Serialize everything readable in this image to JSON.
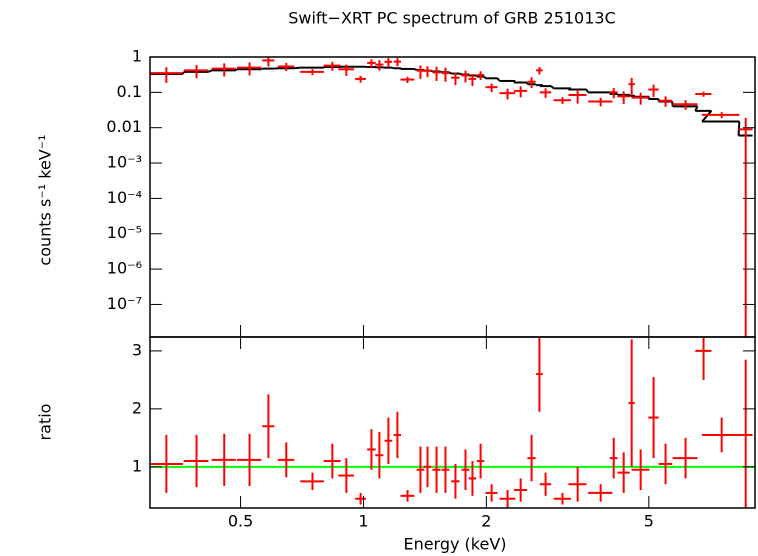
{
  "chart_data": [
    {
      "type": "errorbar",
      "title": "Swift−XRT PC spectrum of GRB 251013C",
      "ylabel": "counts s⁻¹ keV⁻¹",
      "xscale": "log",
      "yscale": "log",
      "xlim": [
        0.3,
        9.1
      ],
      "ylim": [
        1.2e-08,
        1
      ],
      "yticks": [
        1,
        0.1,
        0.01,
        {
          "value": 0.001,
          "label": "10⁻³"
        },
        {
          "value": 0.0001,
          "label": "10⁻⁴"
        },
        {
          "value": 1e-05,
          "label": "10⁻⁵"
        },
        {
          "value": 1e-06,
          "label": "10⁻⁶"
        },
        {
          "value": 1e-07,
          "label": "10⁻⁷"
        }
      ],
      "color": "#ff0000",
      "model_color": "#000000",
      "x": [
        0.329,
        0.39,
        0.456,
        0.526,
        0.585,
        0.647,
        0.75,
        0.839,
        0.908,
        0.984,
        1.046,
        1.094,
        1.151,
        1.211,
        1.282,
        1.379,
        1.435,
        1.51,
        1.588,
        1.68,
        1.778,
        1.849,
        1.936,
        2.06,
        2.254,
        2.427,
        2.581,
        2.698,
        2.793,
        3.073,
        3.347,
        3.811,
        4.102,
        4.339,
        4.539,
        4.775,
        5.136,
        5.495,
        6.151,
        6.808,
        7.541,
        8.635
      ],
      "xerr": [
        0.032,
        0.027,
        0.031,
        0.036,
        0.02,
        0.03,
        0.05,
        0.04,
        0.04,
        0.03,
        0.025,
        0.025,
        0.025,
        0.025,
        0.05,
        0.03,
        0.03,
        0.035,
        0.035,
        0.04,
        0.04,
        0.04,
        0.04,
        0.07,
        0.1,
        0.09,
        0.06,
        0.05,
        0.09,
        0.15,
        0.17,
        0.26,
        0.09,
        0.15,
        0.08,
        0.24,
        0.15,
        0.21,
        0.43,
        0.31,
        0.79,
        0.34
      ],
      "values": [
        0.35,
        0.42,
        0.47,
        0.5,
        0.8,
        0.54,
        0.38,
        0.57,
        0.45,
        0.24,
        0.68,
        0.61,
        0.73,
        0.74,
        0.23,
        0.41,
        0.41,
        0.37,
        0.35,
        0.26,
        0.3,
        0.24,
        0.31,
        0.14,
        0.095,
        0.11,
        0.2,
        0.42,
        0.1,
        0.06,
        0.084,
        0.055,
        0.1,
        0.077,
        0.17,
        0.071,
        0.12,
        0.058,
        0.046,
        0.09,
        0.023,
        0.009
      ],
      "yerr": [
        0.165,
        0.17,
        0.19,
        0.2,
        0.26,
        0.14,
        0.075,
        0.16,
        0.16,
        0.053,
        0.18,
        0.2,
        0.2,
        0.19,
        0.046,
        0.17,
        0.14,
        0.16,
        0.15,
        0.1,
        0.11,
        0.09,
        0.084,
        0.038,
        0.032,
        0.038,
        0.068,
        0.1,
        0.03,
        0.013,
        0.036,
        0.015,
        0.032,
        0.03,
        0.088,
        0.026,
        0.046,
        0.019,
        0.014,
        0.015,
        0.0045,
        0.01
      ],
      "model": [
        0.33,
        0.38,
        0.42,
        0.45,
        0.47,
        0.48,
        0.5,
        0.52,
        0.53,
        0.53,
        0.52,
        0.51,
        0.5,
        0.48,
        0.46,
        0.43,
        0.41,
        0.39,
        0.37,
        0.34,
        0.32,
        0.3,
        0.28,
        0.25,
        0.21,
        0.19,
        0.17,
        0.16,
        0.15,
        0.13,
        0.12,
        0.1,
        0.09,
        0.085,
        0.08,
        0.075,
        0.065,
        0.055,
        0.04,
        0.03,
        0.015,
        0.006
      ]
    },
    {
      "type": "errorbar",
      "ylabel": "ratio",
      "xlabel": "Energy (keV)",
      "xscale": "log",
      "xlim": [
        0.3,
        9.1
      ],
      "ylim": [
        0.29,
        3.24
      ],
      "xticks": [
        0.5,
        1,
        2,
        5
      ],
      "yticks": [
        1,
        2,
        3
      ],
      "color": "#ff0000",
      "reference": 1,
      "reference_color": "#00ff00",
      "x": [
        0.329,
        0.39,
        0.456,
        0.526,
        0.585,
        0.647,
        0.75,
        0.839,
        0.908,
        0.984,
        1.046,
        1.094,
        1.151,
        1.211,
        1.282,
        1.379,
        1.435,
        1.51,
        1.588,
        1.68,
        1.778,
        1.849,
        1.936,
        2.06,
        2.254,
        2.427,
        2.581,
        2.698,
        2.793,
        3.073,
        3.347,
        3.811,
        4.102,
        4.339,
        4.539,
        4.775,
        5.136,
        5.495,
        6.151,
        6.808,
        7.541,
        8.635
      ],
      "xerr": [
        0.032,
        0.027,
        0.031,
        0.036,
        0.02,
        0.03,
        0.05,
        0.04,
        0.04,
        0.03,
        0.025,
        0.025,
        0.025,
        0.025,
        0.05,
        0.03,
        0.03,
        0.035,
        0.035,
        0.04,
        0.04,
        0.04,
        0.04,
        0.07,
        0.1,
        0.09,
        0.06,
        0.05,
        0.09,
        0.15,
        0.17,
        0.26,
        0.09,
        0.15,
        0.08,
        0.24,
        0.15,
        0.21,
        0.43,
        0.31,
        0.79,
        0.34
      ],
      "values": [
        1.05,
        1.1,
        1.12,
        1.12,
        1.7,
        1.12,
        0.75,
        1.1,
        0.85,
        0.45,
        1.3,
        1.2,
        1.45,
        1.55,
        0.5,
        0.95,
        1.0,
        0.95,
        0.95,
        0.75,
        0.95,
        0.8,
        1.1,
        0.55,
        0.45,
        0.6,
        1.15,
        2.6,
        0.7,
        0.45,
        0.7,
        0.55,
        1.15,
        0.9,
        2.1,
        0.95,
        1.85,
        1.05,
        1.15,
        3.0,
        1.55,
        1.55
      ],
      "yerr": [
        0.5,
        0.45,
        0.45,
        0.45,
        0.55,
        0.3,
        0.15,
        0.3,
        0.3,
        0.1,
        0.35,
        0.4,
        0.4,
        0.4,
        0.1,
        0.4,
        0.35,
        0.4,
        0.4,
        0.3,
        0.35,
        0.3,
        0.3,
        0.15,
        0.15,
        0.2,
        0.4,
        0.65,
        0.2,
        0.1,
        0.3,
        0.15,
        0.35,
        0.35,
        1.1,
        0.35,
        0.7,
        0.35,
        0.35,
        0.5,
        0.3,
        1.3
      ]
    }
  ]
}
